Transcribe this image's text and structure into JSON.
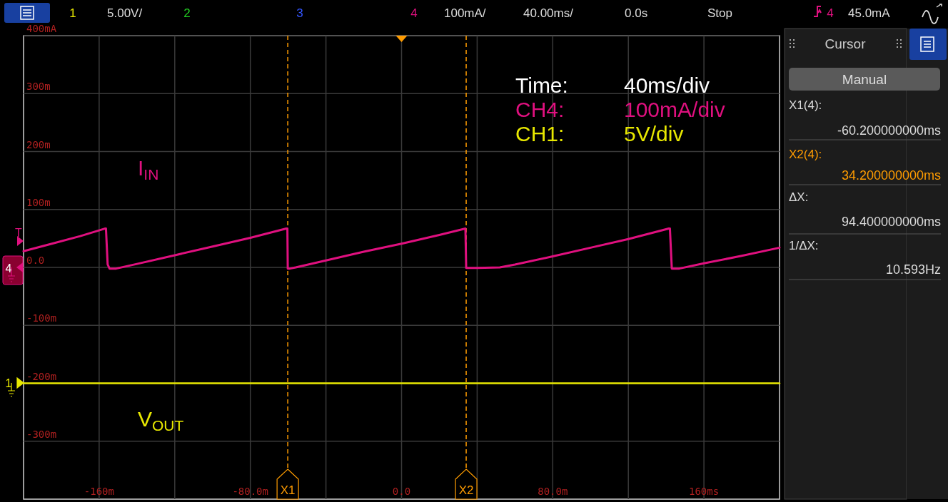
{
  "chart_data": {
    "type": "line",
    "xlim": [
      -200,
      200
    ],
    "ylim": [
      -400,
      400
    ],
    "xticks": [
      {
        "value": -160,
        "label": "-160m"
      },
      {
        "value": -120,
        "label": null
      },
      {
        "value": -80,
        "label": "-80.0m"
      },
      {
        "value": -40,
        "label": null
      },
      {
        "value": 0,
        "label": "0.0"
      },
      {
        "value": 40,
        "label": null
      },
      {
        "value": 80,
        "label": "80.0m"
      },
      {
        "value": 120,
        "label": null
      },
      {
        "value": 160,
        "label": "160ms"
      }
    ],
    "yticks": [
      {
        "value": 400,
        "label": "400mA"
      },
      {
        "value": 300,
        "label": "300m"
      },
      {
        "value": 200,
        "label": "200m"
      },
      {
        "value": 100,
        "label": "100m"
      },
      {
        "value": 0,
        "label": "0.0"
      },
      {
        "value": -100,
        "label": "-100m"
      },
      {
        "value": -200,
        "label": "-200m"
      },
      {
        "value": -300,
        "label": "-300m"
      }
    ],
    "grid": true,
    "legend": false,
    "marker": "none",
    "line_style": "solid",
    "series": [
      {
        "name": "I$_{IN}$",
        "color": "#e0107f",
        "x": [
          -200,
          -185,
          -170,
          -157,
          -156.4,
          -155.5,
          -154.5,
          -151,
          -140,
          -120,
          -100,
          -80,
          -61,
          -60.4,
          -60.2,
          -59,
          -56,
          -40,
          -20,
          0,
          20,
          33.8,
          34.2,
          40,
          52,
          60,
          80,
          100,
          120,
          141.4,
          142,
          143,
          147,
          160,
          180,
          200
        ],
        "values": [
          28,
          41,
          54,
          67,
          67,
          5,
          -2,
          -2,
          6,
          21,
          36,
          51,
          67,
          67,
          -2,
          -2,
          0,
          12,
          27,
          41,
          56,
          67,
          -1,
          -1,
          0,
          5,
          19,
          34,
          49,
          67,
          67,
          -2,
          -2,
          7,
          20,
          34
        ]
      },
      {
        "name": "V$_{OUT}$",
        "color": "#e8e800",
        "x": [
          -200,
          200
        ],
        "values": [
          -200,
          -200
        ]
      }
    ],
    "ref_lines": [
      {
        "axis": "x",
        "value": -60.2,
        "label": "X1",
        "color": "#ff9c00",
        "line_style": "dashed"
      },
      {
        "axis": "x",
        "value": 34.2,
        "label": "X2",
        "color": "#ff9c00",
        "line_style": "dashed"
      }
    ],
    "annotations": [
      "1",
      "5.00V/",
      "2",
      "3",
      "4",
      "100mA/",
      "40.00ms/",
      "0.0s",
      "Stop",
      "4",
      "45.0mA",
      "Time:",
      "40ms/div",
      "CH4:",
      "100mA/div",
      "CH1:",
      "5V/div",
      "Cursor",
      "Manual",
      "X1(4):",
      "-60.200000000ms",
      "X2(4):",
      "34.200000000ms",
      "ΔX:",
      "94.400000000ms",
      "1/ΔX:",
      "10.593Hz",
      "T",
      "4",
      "1"
    ]
  }
}
